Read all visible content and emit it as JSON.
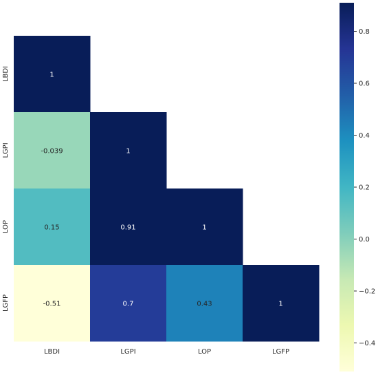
{
  "chart_data": {
    "type": "heatmap",
    "variables": [
      "LBDI",
      "LGPI",
      "LOP",
      "LGFP"
    ],
    "mask": "upper-triangle-hidden",
    "cells": [
      {
        "row": "LBDI",
        "col": "LBDI",
        "value": 1,
        "label": "1"
      },
      {
        "row": "LGPI",
        "col": "LBDI",
        "value": -0.039,
        "label": "-0.039"
      },
      {
        "row": "LGPI",
        "col": "LGPI",
        "value": 1,
        "label": "1"
      },
      {
        "row": "LOP",
        "col": "LBDI",
        "value": 0.15,
        "label": "0.15"
      },
      {
        "row": "LOP",
        "col": "LGPI",
        "value": 0.91,
        "label": "0.91"
      },
      {
        "row": "LOP",
        "col": "LOP",
        "value": 1,
        "label": "1"
      },
      {
        "row": "LGFP",
        "col": "LBDI",
        "value": -0.51,
        "label": "-0.51"
      },
      {
        "row": "LGFP",
        "col": "LGPI",
        "value": 0.7,
        "label": "0.7"
      },
      {
        "row": "LGFP",
        "col": "LOP",
        "value": 0.43,
        "label": "0.43"
      },
      {
        "row": "LGFP",
        "col": "LGFP",
        "value": 1,
        "label": "1"
      }
    ],
    "colorbar": {
      "colormap": "YlGnBu",
      "vmin": -0.51,
      "vmax": 0.91,
      "ticks": [
        -0.4,
        -0.2,
        0.0,
        0.2,
        0.4,
        0.6,
        0.8
      ],
      "tick_labels": [
        "−0.4",
        "−0.2",
        "0.0",
        "0.2",
        "0.4",
        "0.6",
        "0.8"
      ]
    },
    "colormap_stops": [
      "#ffffd9",
      "#edf8b1",
      "#c7e9b4",
      "#7fcdbb",
      "#41b6c4",
      "#1d91c0",
      "#225ea8",
      "#253494",
      "#081d58"
    ],
    "text_color_dark": "#262626",
    "text_color_light": "#ffffff"
  }
}
